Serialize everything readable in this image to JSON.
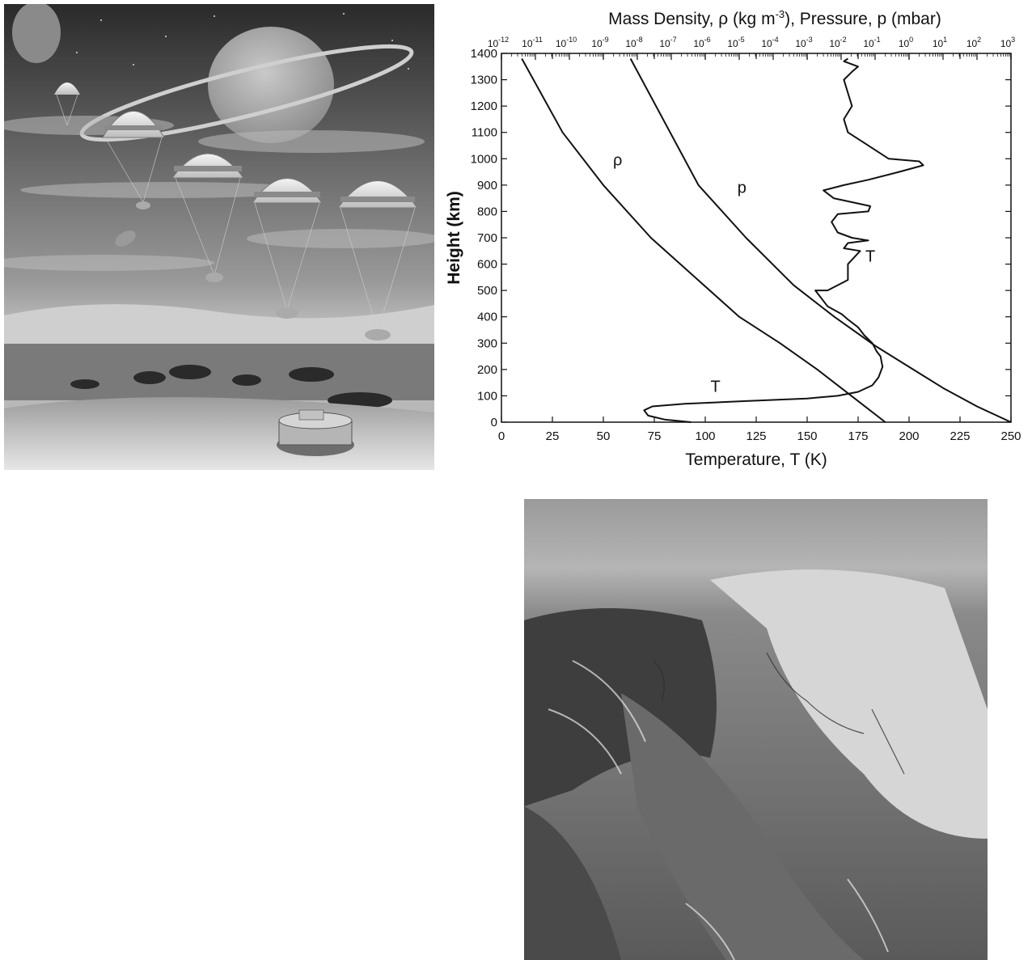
{
  "chart_data": {
    "type": "line",
    "title": "Mass Density, ρ (kg m⁻³), Pressure, p (mbar)",
    "top_axis_label_parts": [
      "Mass Density, ρ (kg m",
      "-3",
      "), Pressure, p (mbar)"
    ],
    "xlabel": "Temperature, T (K)",
    "ylabel": "Height (km)",
    "xlim": [
      0,
      250
    ],
    "ylim": [
      0,
      1400
    ],
    "x_ticks": [
      0,
      25,
      50,
      75,
      100,
      125,
      150,
      175,
      200,
      225,
      250
    ],
    "y_ticks": [
      0,
      100,
      200,
      300,
      400,
      500,
      600,
      700,
      800,
      900,
      1000,
      1100,
      1200,
      1300,
      1400
    ],
    "top_axis": {
      "scale": "log",
      "range": [
        "1e-12",
        "1e3"
      ],
      "tick_labels": [
        "10-12",
        "10-11",
        "10-10",
        "10-9",
        "10-8",
        "10-7",
        "10-6",
        "10-5",
        "10-4",
        "10-3",
        "10-2",
        "10-1",
        "100",
        "101",
        "102",
        "103"
      ],
      "tick_mantissa": "10",
      "tick_exponents": [
        "-12",
        "-11",
        "-10",
        "-9",
        "-8",
        "-7",
        "-6",
        "-5",
        "-4",
        "-3",
        "-2",
        "-1",
        "0",
        "1",
        "2",
        "3"
      ]
    },
    "grid": false,
    "series": [
      {
        "name": "ρ",
        "axis": "top-log",
        "log10_values": [
          -0.7,
          -1.7,
          -2.7,
          -3.8,
          -5.0,
          -6.3,
          -7.6,
          -9.0,
          -10.2,
          -11.4
        ],
        "heights": [
          0,
          100,
          200,
          300,
          400,
          550,
          700,
          900,
          1100,
          1380
        ]
      },
      {
        "name": "p",
        "axis": "top-log",
        "log10_values": [
          3.0,
          2.0,
          1.0,
          0.0,
          -1.0,
          -2.2,
          -3.4,
          -4.8,
          -6.2,
          -8.2
        ],
        "heights": [
          0,
          60,
          130,
          210,
          290,
          400,
          520,
          700,
          900,
          1380
        ]
      },
      {
        "name": "T",
        "axis": "bottom",
        "x": [
          93,
          80,
          72,
          70,
          74,
          90,
          120,
          150,
          165,
          175,
          182,
          185,
          187,
          186,
          184,
          182,
          178,
          175,
          170,
          167,
          160,
          154,
          160,
          170,
          170,
          176,
          168,
          170,
          180,
          172,
          165,
          162,
          165,
          180,
          181,
          163,
          158,
          168,
          180,
          195,
          207,
          205,
          190,
          178,
          170,
          168,
          172,
          170,
          168,
          172,
          175,
          168,
          170
        ],
        "y": [
          0,
          10,
          25,
          45,
          60,
          70,
          80,
          90,
          100,
          115,
          140,
          170,
          210,
          250,
          270,
          300,
          330,
          360,
          390,
          410,
          440,
          500,
          500,
          540,
          600,
          650,
          660,
          680,
          690,
          700,
          720,
          760,
          790,
          800,
          820,
          850,
          880,
          900,
          920,
          950,
          975,
          990,
          1000,
          1060,
          1100,
          1150,
          1200,
          1250,
          1300,
          1330,
          1350,
          1370,
          1380
        ]
      }
    ],
    "annotations": [
      {
        "text": "ρ",
        "x": 57,
        "y": 975
      },
      {
        "text": "p",
        "x": 118,
        "y": 870
      },
      {
        "text": "T",
        "x": 181,
        "y": 610
      },
      {
        "text": "T",
        "x": 105,
        "y": 115
      }
    ]
  }
}
